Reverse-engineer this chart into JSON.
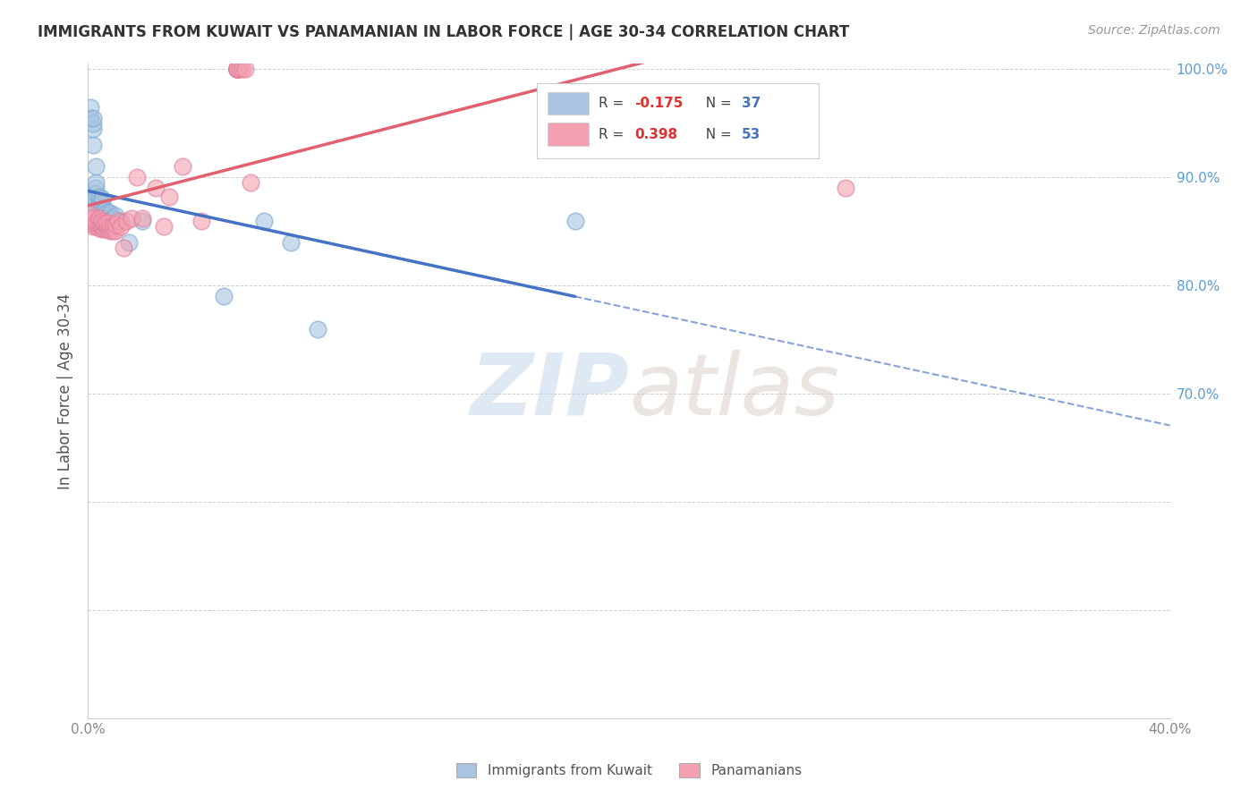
{
  "title": "IMMIGRANTS FROM KUWAIT VS PANAMANIAN IN LABOR FORCE | AGE 30-34 CORRELATION CHART",
  "source": "Source: ZipAtlas.com",
  "ylabel": "In Labor Force | Age 30-34",
  "xlim": [
    0.0,
    0.4
  ],
  "ylim": [
    0.4,
    1.005
  ],
  "kuwait_R": -0.175,
  "kuwait_N": 37,
  "panama_R": 0.398,
  "panama_N": 53,
  "kuwait_color": "#a8c4e0",
  "kuwait_edge_color": "#7aaad0",
  "panama_color": "#f4a0b0",
  "panama_edge_color": "#e080a0",
  "kuwait_line_color": "#4472c4",
  "panama_line_color": "#e06070",
  "legend_label_kuwait": "Immigrants from Kuwait",
  "legend_label_panama": "Panamanians",
  "kuwait_x": [
    0.001,
    0.001,
    0.002,
    0.002,
    0.002,
    0.002,
    0.003,
    0.003,
    0.003,
    0.003,
    0.003,
    0.003,
    0.004,
    0.004,
    0.004,
    0.004,
    0.005,
    0.005,
    0.005,
    0.005,
    0.006,
    0.006,
    0.007,
    0.007,
    0.008,
    0.008,
    0.009,
    0.01,
    0.01,
    0.012,
    0.015,
    0.02,
    0.05,
    0.065,
    0.075,
    0.085,
    0.18
  ],
  "kuwait_y": [
    0.955,
    0.965,
    0.93,
    0.945,
    0.95,
    0.955,
    0.875,
    0.88,
    0.885,
    0.89,
    0.895,
    0.91,
    0.87,
    0.875,
    0.878,
    0.882,
    0.868,
    0.872,
    0.876,
    0.88,
    0.866,
    0.87,
    0.864,
    0.868,
    0.863,
    0.867,
    0.862,
    0.861,
    0.865,
    0.859,
    0.84,
    0.86,
    0.79,
    0.86,
    0.84,
    0.76,
    0.86
  ],
  "panama_x": [
    0.001,
    0.001,
    0.001,
    0.002,
    0.002,
    0.002,
    0.003,
    0.003,
    0.004,
    0.004,
    0.004,
    0.004,
    0.005,
    0.005,
    0.005,
    0.005,
    0.006,
    0.006,
    0.006,
    0.007,
    0.007,
    0.007,
    0.008,
    0.008,
    0.009,
    0.009,
    0.01,
    0.01,
    0.011,
    0.012,
    0.013,
    0.014,
    0.016,
    0.018,
    0.02,
    0.025,
    0.028,
    0.03,
    0.035,
    0.042,
    0.055,
    0.055,
    0.055,
    0.055,
    0.055,
    0.055,
    0.055,
    0.055,
    0.056,
    0.057,
    0.058,
    0.06,
    0.28
  ],
  "panama_y": [
    0.858,
    0.862,
    0.866,
    0.855,
    0.858,
    0.862,
    0.855,
    0.858,
    0.853,
    0.856,
    0.858,
    0.862,
    0.852,
    0.855,
    0.858,
    0.86,
    0.852,
    0.856,
    0.858,
    0.852,
    0.855,
    0.858,
    0.851,
    0.855,
    0.851,
    0.855,
    0.851,
    0.856,
    0.86,
    0.855,
    0.835,
    0.86,
    0.862,
    0.9,
    0.862,
    0.89,
    0.855,
    0.882,
    0.91,
    0.86,
    1.0,
    1.0,
    1.0,
    1.0,
    1.0,
    1.0,
    1.0,
    1.0,
    1.0,
    1.0,
    1.0,
    0.895,
    0.89
  ]
}
